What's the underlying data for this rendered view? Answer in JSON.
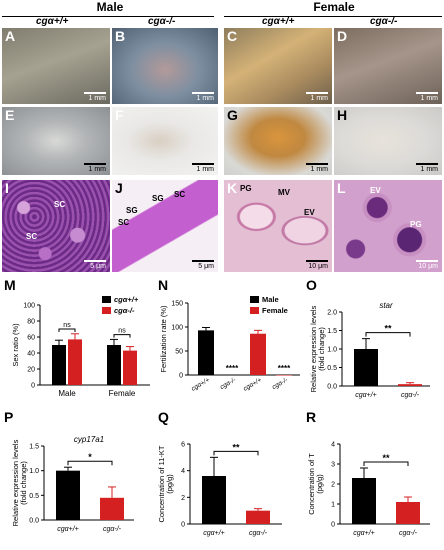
{
  "header": {
    "male": "Male",
    "female": "Female",
    "wt": "cgα+/+",
    "ko": "cgα-/-"
  },
  "photos": [
    {
      "label": "A",
      "scale": "1 mm",
      "bg": "#8d8a7a"
    },
    {
      "label": "B",
      "scale": "1 mm",
      "bg": "#6f7f8e"
    },
    {
      "label": "C",
      "scale": "1 mm",
      "bg": "#b49a6a"
    },
    {
      "label": "D",
      "scale": "1 mm",
      "bg": "#8e7f6d"
    },
    {
      "label": "E",
      "scale": "1 mm",
      "bg": "#9ea2a4"
    },
    {
      "label": "F",
      "scale": "1 mm",
      "bg": "#d8d8d6"
    },
    {
      "label": "G",
      "scale": "1 mm",
      "bg": "#c98e3c"
    },
    {
      "label": "H",
      "scale": "1 mm",
      "bg": "#d3d2cf"
    },
    {
      "label": "I",
      "scale": "5 μm",
      "bg": "#8c3d9e"
    },
    {
      "label": "J",
      "scale": "5 μm",
      "bg": "#f1e3ef"
    },
    {
      "label": "K",
      "scale": "10 μm",
      "bg": "#e6c3d8"
    },
    {
      "label": "L",
      "scale": "10 μm",
      "bg": "#c98cc0"
    }
  ],
  "annotations": {
    "I": [
      "SC",
      "SC"
    ],
    "J": [
      "SG",
      "SC",
      "SG",
      "SC"
    ],
    "K": [
      "PG",
      "MV",
      "EV"
    ],
    "L": [
      "EV",
      "PG"
    ]
  },
  "colors": {
    "wt": "#000000",
    "ko": "#d42020"
  },
  "chart_data": [
    {
      "id": "M",
      "type": "bar",
      "ylabel": "Sex ratio (%)",
      "ylim": [
        0,
        100
      ],
      "yticks": [
        0,
        20,
        40,
        60,
        80,
        100
      ],
      "categories": [
        "Male",
        "Female"
      ],
      "legend": [
        "cgα+/+",
        "cgα-/-"
      ],
      "legend_position": "top-right",
      "series": [
        {
          "name": "cgα+/+",
          "values": [
            50,
            50
          ],
          "errors": [
            6,
            7
          ]
        },
        {
          "name": "cgα-/-",
          "values": [
            57,
            43
          ],
          "errors": [
            7,
            5
          ]
        }
      ],
      "significance": [
        "ns",
        "ns"
      ]
    },
    {
      "id": "N",
      "type": "bar",
      "ylabel": "Fertilization rate (%)",
      "ylim": [
        0,
        150
      ],
      "yticks": [
        0,
        50,
        100,
        150
      ],
      "categories": [
        "cgα+/+",
        "cgα-/-",
        "cgα+/+",
        "cgα-/-"
      ],
      "legend": [
        "Male",
        "Female"
      ],
      "legend_position": "top-right",
      "series": [
        {
          "name": "Male",
          "values": [
            93,
            0,
            null,
            null
          ],
          "errors": [
            6,
            0,
            null,
            null
          ]
        },
        {
          "name": "Female",
          "values": [
            null,
            null,
            86,
            0
          ],
          "errors": [
            null,
            null,
            7,
            0
          ]
        }
      ],
      "stars": [
        "",
        "****",
        "",
        "****"
      ]
    },
    {
      "id": "O",
      "type": "bar",
      "title": "star",
      "ylabel": "Relative expression levels (fold change)",
      "ylim": [
        0,
        2.0
      ],
      "yticks": [
        0.0,
        0.5,
        1.0,
        1.5,
        2.0
      ],
      "categories": [
        "cgα+/+",
        "cgα-/-"
      ],
      "values": [
        1.0,
        0.05
      ],
      "errors": [
        0.28,
        0.04
      ],
      "significance": "**"
    },
    {
      "id": "P",
      "type": "bar",
      "title": "cyp17a1",
      "ylabel": "Relative expression levels (fold change)",
      "ylim": [
        0,
        1.5
      ],
      "yticks": [
        0.0,
        0.5,
        1.0,
        1.5
      ],
      "categories": [
        "cgα+/+",
        "cgα-/-"
      ],
      "values": [
        1.0,
        0.45
      ],
      "errors": [
        0.07,
        0.22
      ],
      "significance": "*"
    },
    {
      "id": "Q",
      "type": "bar",
      "ylabel": "Concentration of 11-KT (pg/g)",
      "ylim": [
        0,
        6
      ],
      "yticks": [
        0,
        2,
        4,
        6
      ],
      "categories": [
        "cgα+/+",
        "cgα-/-"
      ],
      "values": [
        3.6,
        1.0
      ],
      "errors": [
        1.4,
        0.15
      ],
      "significance": "**"
    },
    {
      "id": "R",
      "type": "bar",
      "ylabel": "Concentration of T (pg/g)",
      "ylim": [
        0,
        4
      ],
      "yticks": [
        0,
        1,
        2,
        3,
        4
      ],
      "categories": [
        "cgα+/+",
        "cgα-/-"
      ],
      "values": [
        2.3,
        1.1
      ],
      "errors": [
        0.5,
        0.25
      ],
      "significance": "**"
    }
  ]
}
